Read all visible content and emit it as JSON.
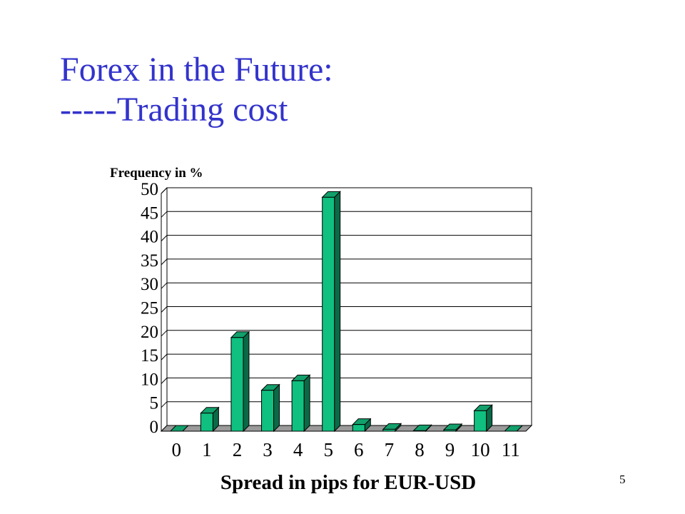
{
  "slide": {
    "title_line1": "Forex in the Future:",
    "title_line2": "-----Trading cost",
    "page_number": "5"
  },
  "chart_data": {
    "type": "bar",
    "style": "3d",
    "title": "",
    "ylabel": "Frequency in %",
    "xlabel": "Spread in pips for EUR-USD",
    "categories": [
      "0",
      "1",
      "2",
      "3",
      "4",
      "5",
      "6",
      "7",
      "8",
      "9",
      "10",
      "11"
    ],
    "values": [
      0,
      3.8,
      19.7,
      8.6,
      10.6,
      49.2,
      1.4,
      0.4,
      0.1,
      0.3,
      4.3,
      0
    ],
    "ylim": [
      0,
      50
    ],
    "yticks": [
      0,
      5,
      10,
      15,
      20,
      25,
      30,
      35,
      40,
      45,
      50
    ],
    "grid": true,
    "legend": "none",
    "colors": {
      "bar_front": "#10c080",
      "bar_top": "#12a06c",
      "bar_side": "#0a6a48",
      "floor": "#9a9a9a",
      "gridline": "#000000"
    }
  }
}
